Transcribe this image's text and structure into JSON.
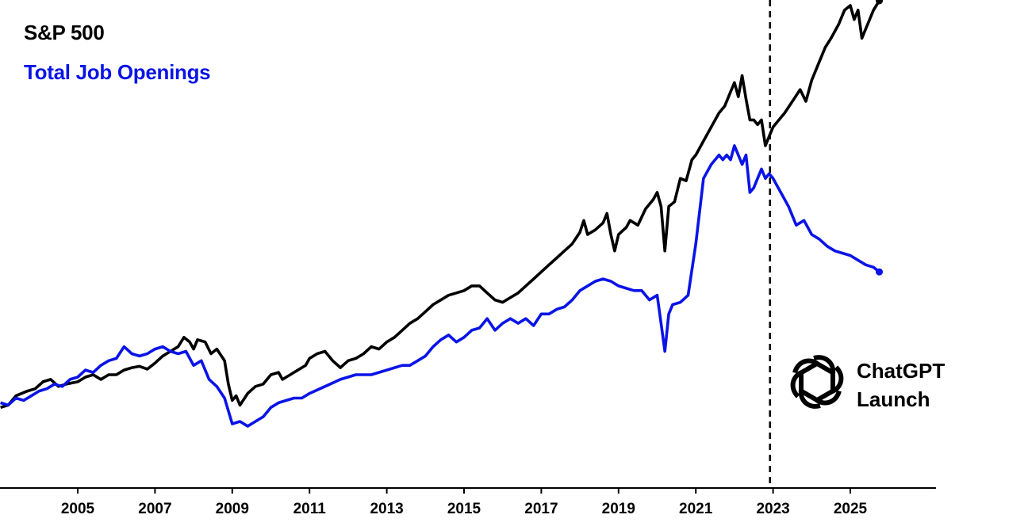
{
  "chart_data": {
    "type": "line",
    "xlim": [
      2003.0,
      2027.2
    ],
    "x_ticks": [
      "2005",
      "2007",
      "2009",
      "2011",
      "2013",
      "2015",
      "2017",
      "2019",
      "2021",
      "2023",
      "2025"
    ],
    "x_tick_values": [
      2005,
      2007,
      2009,
      2011,
      2013,
      2015,
      2017,
      2019,
      2021,
      2023,
      2025
    ],
    "y_axis_visible": false,
    "grid": false,
    "series": [
      {
        "name": "S&P 500",
        "color": "#000000",
        "points": [
          [
            2003.0,
            0.23
          ],
          [
            2003.2,
            0.235
          ],
          [
            2003.4,
            0.255
          ],
          [
            2003.7,
            0.265
          ],
          [
            2003.9,
            0.27
          ],
          [
            2004.1,
            0.285
          ],
          [
            2004.3,
            0.29
          ],
          [
            2004.5,
            0.275
          ],
          [
            2004.7,
            0.28
          ],
          [
            2005.0,
            0.285
          ],
          [
            2005.2,
            0.295
          ],
          [
            2005.4,
            0.3
          ],
          [
            2005.6,
            0.29
          ],
          [
            2005.8,
            0.3
          ],
          [
            2006.0,
            0.3
          ],
          [
            2006.2,
            0.31
          ],
          [
            2006.4,
            0.315
          ],
          [
            2006.6,
            0.318
          ],
          [
            2006.8,
            0.312
          ],
          [
            2007.0,
            0.325
          ],
          [
            2007.2,
            0.34
          ],
          [
            2007.4,
            0.35
          ],
          [
            2007.6,
            0.36
          ],
          [
            2007.75,
            0.38
          ],
          [
            2007.9,
            0.37
          ],
          [
            2008.0,
            0.355
          ],
          [
            2008.1,
            0.375
          ],
          [
            2008.3,
            0.37
          ],
          [
            2008.45,
            0.345
          ],
          [
            2008.6,
            0.355
          ],
          [
            2008.8,
            0.33
          ],
          [
            2008.9,
            0.28
          ],
          [
            2009.0,
            0.245
          ],
          [
            2009.1,
            0.255
          ],
          [
            2009.2,
            0.235
          ],
          [
            2009.4,
            0.26
          ],
          [
            2009.6,
            0.275
          ],
          [
            2009.8,
            0.28
          ],
          [
            2010.0,
            0.3
          ],
          [
            2010.2,
            0.305
          ],
          [
            2010.3,
            0.29
          ],
          [
            2010.5,
            0.3
          ],
          [
            2010.7,
            0.31
          ],
          [
            2010.9,
            0.32
          ],
          [
            2011.0,
            0.335
          ],
          [
            2011.2,
            0.345
          ],
          [
            2011.4,
            0.35
          ],
          [
            2011.6,
            0.33
          ],
          [
            2011.8,
            0.315
          ],
          [
            2012.0,
            0.33
          ],
          [
            2012.2,
            0.335
          ],
          [
            2012.4,
            0.345
          ],
          [
            2012.6,
            0.36
          ],
          [
            2012.8,
            0.355
          ],
          [
            2013.0,
            0.37
          ],
          [
            2013.2,
            0.38
          ],
          [
            2013.4,
            0.395
          ],
          [
            2013.6,
            0.41
          ],
          [
            2013.8,
            0.42
          ],
          [
            2014.0,
            0.435
          ],
          [
            2014.2,
            0.45
          ],
          [
            2014.4,
            0.46
          ],
          [
            2014.6,
            0.47
          ],
          [
            2014.8,
            0.475
          ],
          [
            2015.0,
            0.48
          ],
          [
            2015.2,
            0.49
          ],
          [
            2015.4,
            0.49
          ],
          [
            2015.6,
            0.475
          ],
          [
            2015.8,
            0.46
          ],
          [
            2016.0,
            0.455
          ],
          [
            2016.2,
            0.465
          ],
          [
            2016.4,
            0.475
          ],
          [
            2016.6,
            0.49
          ],
          [
            2016.8,
            0.505
          ],
          [
            2017.0,
            0.52
          ],
          [
            2017.2,
            0.535
          ],
          [
            2017.4,
            0.55
          ],
          [
            2017.6,
            0.565
          ],
          [
            2017.8,
            0.58
          ],
          [
            2018.0,
            0.605
          ],
          [
            2018.1,
            0.63
          ],
          [
            2018.2,
            0.6
          ],
          [
            2018.4,
            0.61
          ],
          [
            2018.6,
            0.625
          ],
          [
            2018.7,
            0.645
          ],
          [
            2018.8,
            0.6
          ],
          [
            2018.9,
            0.565
          ],
          [
            2019.0,
            0.6
          ],
          [
            2019.2,
            0.615
          ],
          [
            2019.3,
            0.63
          ],
          [
            2019.5,
            0.62
          ],
          [
            2019.7,
            0.655
          ],
          [
            2019.9,
            0.675
          ],
          [
            2020.0,
            0.69
          ],
          [
            2020.1,
            0.66
          ],
          [
            2020.2,
            0.565
          ],
          [
            2020.3,
            0.66
          ],
          [
            2020.45,
            0.67
          ],
          [
            2020.6,
            0.72
          ],
          [
            2020.75,
            0.715
          ],
          [
            2020.9,
            0.76
          ],
          [
            2021.0,
            0.77
          ],
          [
            2021.2,
            0.8
          ],
          [
            2021.4,
            0.83
          ],
          [
            2021.6,
            0.86
          ],
          [
            2021.75,
            0.875
          ],
          [
            2021.9,
            0.905
          ],
          [
            2022.0,
            0.925
          ],
          [
            2022.1,
            0.895
          ],
          [
            2022.2,
            0.94
          ],
          [
            2022.3,
            0.89
          ],
          [
            2022.4,
            0.845
          ],
          [
            2022.5,
            0.845
          ],
          [
            2022.6,
            0.835
          ],
          [
            2022.7,
            0.845
          ],
          [
            2022.8,
            0.79
          ],
          [
            2022.9,
            0.81
          ],
          [
            2023.0,
            0.83
          ],
          [
            2023.1,
            0.84
          ],
          [
            2023.3,
            0.86
          ],
          [
            2023.5,
            0.885
          ],
          [
            2023.7,
            0.91
          ],
          [
            2023.85,
            0.885
          ],
          [
            2024.0,
            0.93
          ],
          [
            2024.2,
            0.97
          ],
          [
            2024.35,
            1.0
          ],
          [
            2024.5,
            1.02
          ],
          [
            2024.7,
            1.05
          ],
          [
            2024.85,
            1.08
          ],
          [
            2025.0,
            1.09
          ],
          [
            2025.1,
            1.06
          ],
          [
            2025.2,
            1.08
          ],
          [
            2025.3,
            1.02
          ],
          [
            2025.45,
            1.05
          ],
          [
            2025.6,
            1.08
          ],
          [
            2025.75,
            1.1
          ]
        ]
      },
      {
        "name": "Total Job Openings",
        "color": "#0a14e6",
        "points": [
          [
            2003.0,
            0.24
          ],
          [
            2003.2,
            0.235
          ],
          [
            2003.4,
            0.25
          ],
          [
            2003.6,
            0.245
          ],
          [
            2003.8,
            0.255
          ],
          [
            2004.0,
            0.265
          ],
          [
            2004.2,
            0.27
          ],
          [
            2004.4,
            0.28
          ],
          [
            2004.6,
            0.275
          ],
          [
            2004.8,
            0.29
          ],
          [
            2005.0,
            0.295
          ],
          [
            2005.2,
            0.31
          ],
          [
            2005.4,
            0.305
          ],
          [
            2005.6,
            0.32
          ],
          [
            2005.8,
            0.33
          ],
          [
            2006.0,
            0.335
          ],
          [
            2006.2,
            0.36
          ],
          [
            2006.4,
            0.345
          ],
          [
            2006.6,
            0.34
          ],
          [
            2006.8,
            0.345
          ],
          [
            2007.0,
            0.355
          ],
          [
            2007.2,
            0.36
          ],
          [
            2007.4,
            0.35
          ],
          [
            2007.6,
            0.345
          ],
          [
            2007.8,
            0.35
          ],
          [
            2008.0,
            0.32
          ],
          [
            2008.2,
            0.33
          ],
          [
            2008.4,
            0.29
          ],
          [
            2008.6,
            0.275
          ],
          [
            2008.8,
            0.25
          ],
          [
            2009.0,
            0.195
          ],
          [
            2009.2,
            0.2
          ],
          [
            2009.4,
            0.19
          ],
          [
            2009.6,
            0.2
          ],
          [
            2009.8,
            0.21
          ],
          [
            2010.0,
            0.23
          ],
          [
            2010.2,
            0.24
          ],
          [
            2010.4,
            0.245
          ],
          [
            2010.6,
            0.25
          ],
          [
            2010.8,
            0.25
          ],
          [
            2011.0,
            0.26
          ],
          [
            2011.4,
            0.275
          ],
          [
            2011.8,
            0.29
          ],
          [
            2012.2,
            0.3
          ],
          [
            2012.6,
            0.3
          ],
          [
            2013.0,
            0.31
          ],
          [
            2013.4,
            0.32
          ],
          [
            2013.6,
            0.32
          ],
          [
            2013.8,
            0.33
          ],
          [
            2014.0,
            0.34
          ],
          [
            2014.2,
            0.36
          ],
          [
            2014.4,
            0.375
          ],
          [
            2014.6,
            0.385
          ],
          [
            2014.8,
            0.37
          ],
          [
            2015.0,
            0.38
          ],
          [
            2015.2,
            0.395
          ],
          [
            2015.4,
            0.4
          ],
          [
            2015.6,
            0.42
          ],
          [
            2015.8,
            0.395
          ],
          [
            2016.0,
            0.41
          ],
          [
            2016.2,
            0.42
          ],
          [
            2016.4,
            0.41
          ],
          [
            2016.6,
            0.42
          ],
          [
            2016.8,
            0.405
          ],
          [
            2017.0,
            0.43
          ],
          [
            2017.2,
            0.43
          ],
          [
            2017.4,
            0.44
          ],
          [
            2017.6,
            0.445
          ],
          [
            2017.8,
            0.46
          ],
          [
            2018.0,
            0.48
          ],
          [
            2018.2,
            0.49
          ],
          [
            2018.4,
            0.5
          ],
          [
            2018.6,
            0.505
          ],
          [
            2018.8,
            0.5
          ],
          [
            2019.0,
            0.49
          ],
          [
            2019.2,
            0.485
          ],
          [
            2019.4,
            0.48
          ],
          [
            2019.6,
            0.48
          ],
          [
            2019.8,
            0.46
          ],
          [
            2020.0,
            0.47
          ],
          [
            2020.1,
            0.41
          ],
          [
            2020.2,
            0.35
          ],
          [
            2020.3,
            0.43
          ],
          [
            2020.4,
            0.45
          ],
          [
            2020.6,
            0.455
          ],
          [
            2020.8,
            0.47
          ],
          [
            2021.0,
            0.58
          ],
          [
            2021.2,
            0.72
          ],
          [
            2021.4,
            0.75
          ],
          [
            2021.5,
            0.76
          ],
          [
            2021.6,
            0.77
          ],
          [
            2021.7,
            0.76
          ],
          [
            2021.8,
            0.77
          ],
          [
            2021.9,
            0.76
          ],
          [
            2022.0,
            0.79
          ],
          [
            2022.1,
            0.77
          ],
          [
            2022.2,
            0.75
          ],
          [
            2022.3,
            0.77
          ],
          [
            2022.4,
            0.69
          ],
          [
            2022.5,
            0.7
          ],
          [
            2022.6,
            0.72
          ],
          [
            2022.7,
            0.74
          ],
          [
            2022.8,
            0.72
          ],
          [
            2022.9,
            0.73
          ],
          [
            2023.0,
            0.72
          ],
          [
            2023.2,
            0.69
          ],
          [
            2023.4,
            0.66
          ],
          [
            2023.6,
            0.62
          ],
          [
            2023.8,
            0.63
          ],
          [
            2024.0,
            0.6
          ],
          [
            2024.2,
            0.59
          ],
          [
            2024.4,
            0.575
          ],
          [
            2024.6,
            0.565
          ],
          [
            2024.8,
            0.56
          ],
          [
            2025.0,
            0.555
          ],
          [
            2025.2,
            0.545
          ],
          [
            2025.4,
            0.535
          ],
          [
            2025.6,
            0.53
          ],
          [
            2025.75,
            0.52
          ]
        ]
      }
    ],
    "annotations": [
      {
        "type": "vertical-dashed-line",
        "x": 2022.92,
        "label_line1": "ChatGPT",
        "label_line2": "Launch"
      }
    ]
  }
}
